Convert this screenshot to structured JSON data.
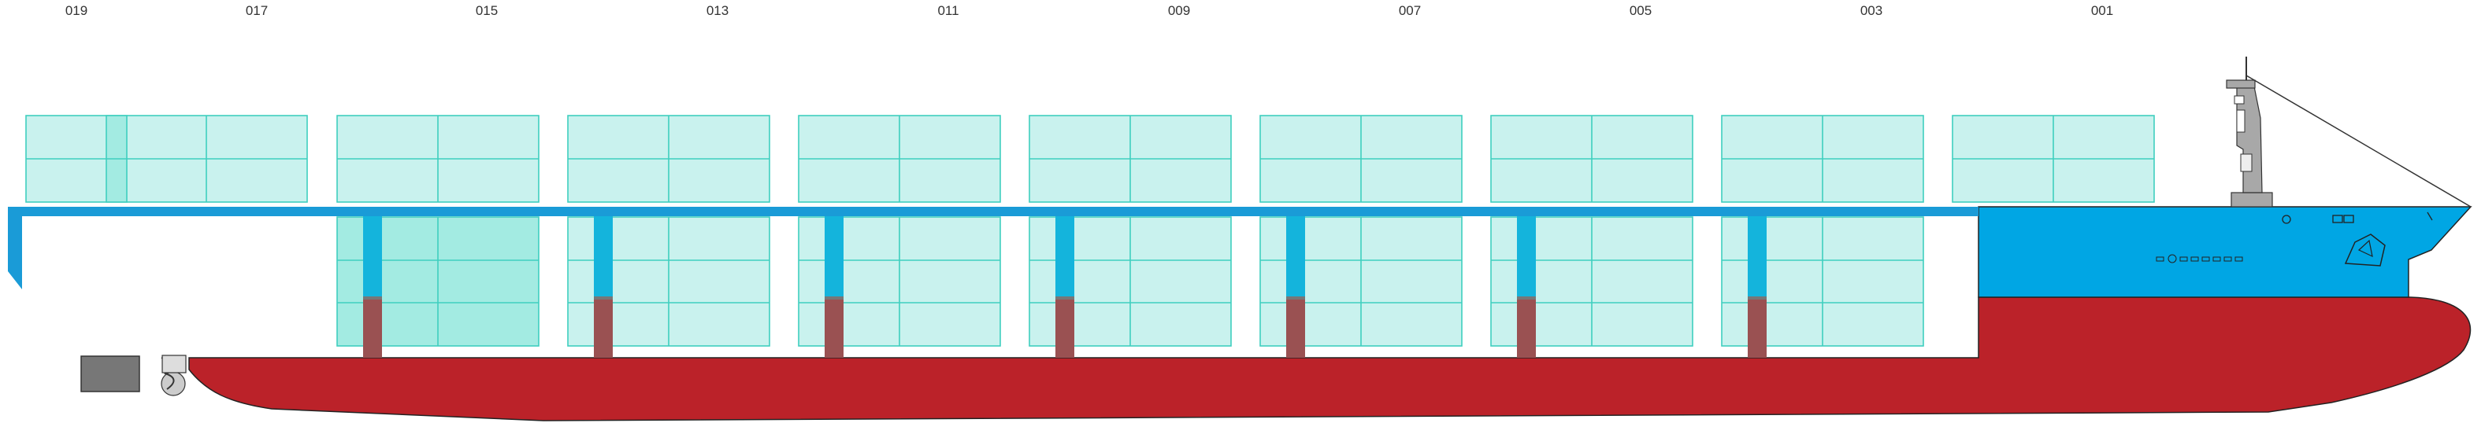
{
  "bay_labels": [
    "019",
    "017",
    "015",
    "013",
    "011",
    "009",
    "007",
    "005",
    "003",
    "001"
  ],
  "colors": {
    "container_fill": "#c9f2ee",
    "container_fill_dark": "#a3ebe2",
    "container_stroke": "#3fcfbf",
    "hull_red": "#bb2229",
    "hull_blue": "#00a6e4",
    "deck_blue": "#1a9bd7",
    "pillar_blue": "#14b4dc",
    "pillar_red": "#9a5152",
    "superstructure_grey": "#a8a8a8",
    "rudder_grey": "#777777"
  }
}
